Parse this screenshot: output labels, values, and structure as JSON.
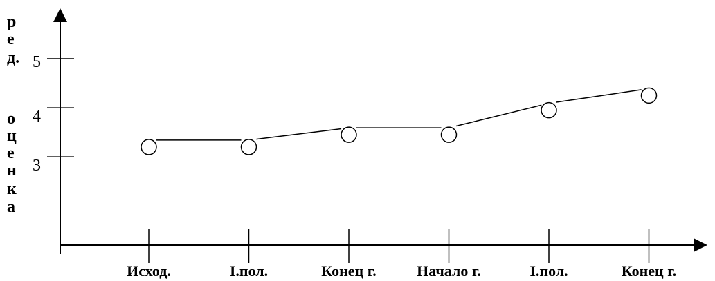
{
  "chart_data": {
    "type": "line",
    "title": "",
    "xlabel": "",
    "ylabel": "ред. оценка",
    "ylabel_lines": [
      "р",
      "е",
      "д.",
      "",
      "о",
      "ц",
      "е",
      "н",
      "к",
      "а"
    ],
    "categories": [
      "Исход.",
      "I.пол.",
      "Конец г.",
      "Начало г.",
      "I.пол.",
      "Конец г."
    ],
    "values": [
      3.2,
      3.2,
      3.45,
      3.45,
      3.95,
      4.25
    ],
    "yticks": [
      {
        "value": 3,
        "label": "3"
      },
      {
        "value": 4,
        "label": "4"
      },
      {
        "value": 5,
        "label": "5"
      }
    ],
    "ylim": [
      1.2,
      6.0
    ],
    "grid": false,
    "legend": "none",
    "marker": "circle-open",
    "line_color": "#000000"
  }
}
